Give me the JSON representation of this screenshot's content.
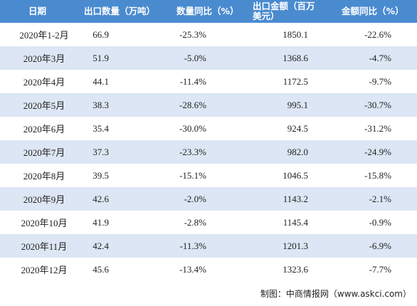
{
  "table": {
    "header": [
      "日期",
      "出口数量（万吨）",
      "数量同比（%）",
      "出口金额（百万美元）",
      "金额同比（%）"
    ],
    "rows": [
      [
        "2020年1-2月",
        "66.9",
        "-25.3%",
        "1850.1",
        "-22.6%"
      ],
      [
        "2020年3月",
        "51.9",
        "-5.0%",
        "1368.6",
        "-4.7%"
      ],
      [
        "2020年4月",
        "44.1",
        "-11.4%",
        "1172.5",
        "-9.7%"
      ],
      [
        "2020年5月",
        "38.3",
        "-28.6%",
        "995.1",
        "-30.7%"
      ],
      [
        "2020年6月",
        "35.4",
        "-30.0%",
        "924.5",
        "-31.2%"
      ],
      [
        "2020年7月",
        "37.3",
        "-23.3%",
        "982.0",
        "-24.9%"
      ],
      [
        "2020年8月",
        "39.5",
        "-15.1%",
        "1046.5",
        "-15.8%"
      ],
      [
        "2020年9月",
        "42.6",
        "-2.0%",
        "1143.2",
        "-2.1%"
      ],
      [
        "2020年10月",
        "41.9",
        "-2.8%",
        "1145.4",
        "-0.9%"
      ],
      [
        "2020年11月",
        "42.4",
        "-11.3%",
        "1201.3",
        "-6.9%"
      ],
      [
        "2020年12月",
        "45.6",
        "-13.4%",
        "1323.6",
        "-7.7%"
      ]
    ]
  },
  "footer": "制图：中商情报网（www.askci.com）"
}
